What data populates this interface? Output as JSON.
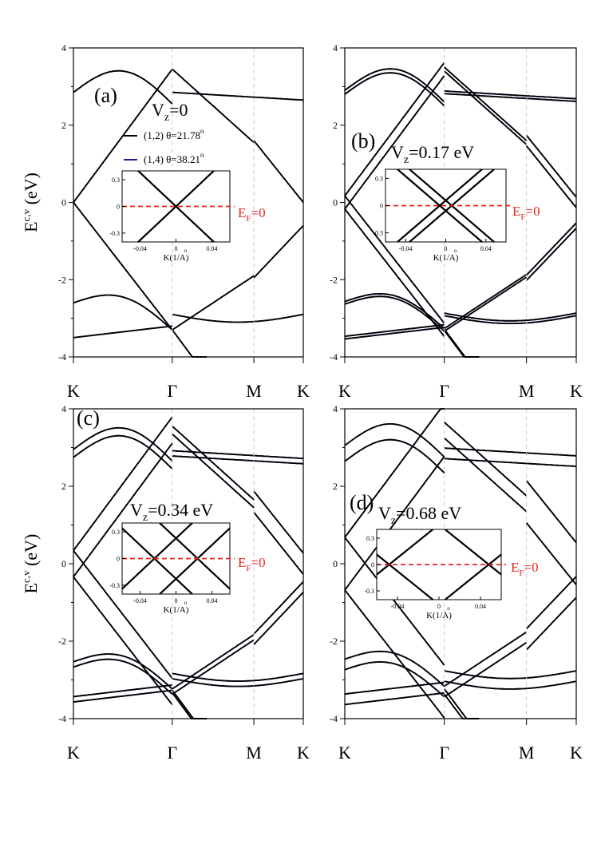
{
  "figure": {
    "y_axis_label_main": "E",
    "y_axis_label_sup": "c,v",
    "y_axis_label_unit": " (eV)",
    "k_labels": [
      "K",
      "Γ",
      "M",
      "K"
    ],
    "colors": {
      "series_a": "#000000",
      "series_b": "#1a1a9c",
      "fermi": "#e8231f",
      "gamma_line": "#cccccc"
    }
  },
  "panels": [
    {
      "id": "a",
      "label": "(a)",
      "vz_main": "V",
      "vz_sub": "z",
      "vz_rest": "=0",
      "legend": [
        {
          "label": "(1,2) θ=21.78",
          "deg": "o",
          "color": "#000000"
        },
        {
          "label": "(1,4) θ=38.21",
          "deg": "o",
          "color": "#1a1a9c"
        }
      ],
      "inset": {
        "xticks": [
          "-0.04",
          "0",
          "0.04"
        ],
        "yticks": [
          "0.3",
          "0",
          "-0.3"
        ],
        "xlabel": "K(1/A)",
        "ring": "o",
        "fermi_main": "E",
        "fermi_sub": "F",
        "fermi_rest": "=0",
        "crossings": [
          0
        ]
      }
    },
    {
      "id": "b",
      "label": "(b)",
      "vz_main": "V",
      "vz_sub": "z",
      "vz_rest": "=0.17 eV",
      "legend": [],
      "inset": {
        "xticks": [
          "-0.04",
          "0",
          "0.04"
        ],
        "yticks": [
          "0.3",
          "0",
          "-0.3"
        ],
        "xlabel": "K(1/A)",
        "ring": "o",
        "fermi_main": "E",
        "fermi_sub": "F",
        "fermi_rest": "=0",
        "crossings": [
          -0.006,
          0.006
        ]
      }
    },
    {
      "id": "c",
      "label": "(c)",
      "vz_main": "V",
      "vz_sub": "z",
      "vz_rest": "=0.34 eV",
      "legend": [],
      "inset": {
        "xticks": [
          "-0.04",
          "0",
          "0.04"
        ],
        "yticks": [
          "0.3",
          "0",
          "-0.3"
        ],
        "xlabel": "K(1/A)",
        "ring": "o",
        "fermi_main": "E",
        "fermi_sub": "F",
        "fermi_rest": "=0",
        "crossings": [
          -0.024,
          0.024
        ]
      }
    },
    {
      "id": "d",
      "label": "(d)",
      "vz_main": "V",
      "vz_sub": "z",
      "vz_rest": "=0.68 eV",
      "legend": [],
      "inset": {
        "xticks": [
          "-0.04",
          "0",
          "0.04"
        ],
        "yticks": [
          "0.3",
          "0",
          "-0.3"
        ],
        "xlabel": "K(1/A)",
        "ring": "o",
        "fermi_main": "E",
        "fermi_sub": "F",
        "fermi_rest": "=0",
        "crossings": [
          -0.048,
          0.048
        ]
      }
    }
  ],
  "chart_data": [
    {
      "type": "line",
      "panel": "a",
      "ylabel": "Ec,v (eV)",
      "ylim": [
        -4,
        4
      ],
      "yticks": [
        -4,
        -2,
        0,
        2,
        4
      ],
      "x_ticks": [
        "K",
        "Γ",
        "M",
        "K"
      ],
      "x_tick_positions": [
        0,
        1.0,
        1.5,
        2.0
      ],
      "series": [
        {
          "name": "(1,2) θ=21.78o",
          "fermi_velocity_shift": 0.0
        },
        {
          "name": "(1,4) θ=38.21o",
          "fermi_velocity_shift": 0.0
        }
      ],
      "dirac_point_energy": 0,
      "inset": {
        "xlim": [
          -0.06,
          0.06
        ],
        "ylim": [
          -0.4,
          0.4
        ],
        "fermi_level": 0,
        "band_crossings_k": [
          0
        ]
      }
    },
    {
      "type": "line",
      "panel": "b",
      "ylim": [
        -4,
        4
      ],
      "yticks": [
        -4,
        -2,
        0,
        2,
        4
      ],
      "x_ticks": [
        "K",
        "Γ",
        "M",
        "K"
      ],
      "vz_eV": 0.17,
      "inset": {
        "xlim": [
          -0.06,
          0.06
        ],
        "ylim": [
          -0.4,
          0.4
        ],
        "fermi_level": 0,
        "band_crossings_k": [
          -0.006,
          0.006
        ]
      }
    },
    {
      "type": "line",
      "panel": "c",
      "ylabel": "Ec,v (eV)",
      "ylim": [
        -4,
        4
      ],
      "yticks": [
        -4,
        -2,
        0,
        2,
        4
      ],
      "x_ticks": [
        "K",
        "Γ",
        "M",
        "K"
      ],
      "vz_eV": 0.34,
      "inset": {
        "xlim": [
          -0.06,
          0.06
        ],
        "ylim": [
          -0.4,
          0.4
        ],
        "fermi_level": 0,
        "band_crossings_k": [
          -0.024,
          0.024
        ]
      }
    },
    {
      "type": "line",
      "panel": "d",
      "ylim": [
        -4,
        4
      ],
      "yticks": [
        -4,
        -2,
        0,
        2,
        4
      ],
      "x_ticks": [
        "K",
        "Γ",
        "M",
        "K"
      ],
      "vz_eV": 0.68,
      "inset": {
        "xlim": [
          -0.06,
          0.06
        ],
        "ylim": [
          -0.4,
          0.4
        ],
        "fermi_level": 0,
        "band_crossings_k": [
          -0.048,
          0.048
        ]
      }
    }
  ]
}
